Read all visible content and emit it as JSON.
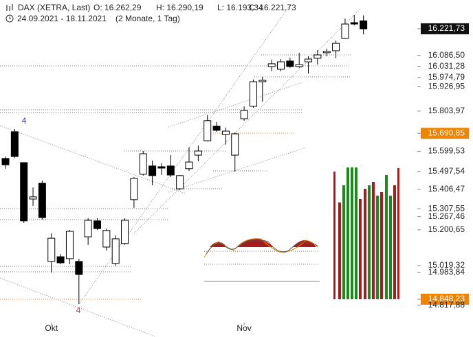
{
  "header": {
    "instrument": "DAX (XETRA, Last)",
    "open": "O: 16.262,29",
    "high": "H: 16.290,19",
    "low": "L: 16.193,34",
    "close": "C: 16.221,73",
    "range": "24.09.2021 - 18.11.2021",
    "period": "(2 Monate, 1 Tag)"
  },
  "chart_data": {
    "type": "candlestick",
    "categories": [
      null,
      null,
      null,
      null,
      null,
      "Okt",
      null,
      null,
      null,
      null,
      null,
      null,
      null,
      null,
      null,
      null,
      null,
      null,
      null,
      null,
      null,
      null,
      null,
      null,
      null,
      null,
      "Nov",
      null,
      null,
      null,
      null,
      null,
      null,
      null,
      null,
      null,
      null,
      null,
      null,
      null
    ],
    "open": [
      15563,
      15699,
      15542,
      15357,
      15437,
      15040,
      15064,
      15054,
      15040,
      15165,
      15246,
      15113,
      15030,
      15131,
      15354,
      15483,
      15525,
      15521,
      15525,
      15409,
      15511,
      15580,
      15653,
      15727,
      15685,
      15580,
      15765,
      15828,
      15953,
      16030,
      16016,
      16058,
      16030,
      16054,
      16072,
      16100,
      16110,
      16173,
      16253,
      16262.29
    ],
    "high": [
      15573,
      15713,
      15542,
      15416,
      15451,
      15183,
      15078,
      15200,
      15054,
      15260,
      15260,
      15207,
      15172,
      15260,
      15469,
      15601,
      15552,
      15538,
      15580,
      15479,
      15619,
      15629,
      15783,
      15748,
      15720,
      15695,
      15828,
      15964,
      15978,
      16065,
      16068,
      16075,
      16100,
      16082,
      16114,
      16121,
      16162,
      16274,
      16291,
      16290.19
    ],
    "low": [
      15511,
      15566,
      15235,
      15322,
      15253,
      14984,
      15026,
      15026,
      14824,
      15124,
      15200,
      15096,
      15019,
      15124,
      15312,
      15476,
      15427,
      15479,
      15469,
      15402,
      15500,
      15549,
      15650,
      15699,
      15633,
      15497,
      15755,
      15821,
      15852,
      16006,
      16006,
      16023,
      16023,
      15995,
      16040,
      16082,
      16072,
      16170,
      16239,
      16193.34
    ],
    "close": [
      15531,
      15573,
      15246,
      15368,
      15263,
      15158,
      15033,
      15193,
      14974,
      15249,
      15207,
      15197,
      15155,
      15249,
      15462,
      15587,
      15476,
      15514,
      15479,
      15476,
      15545,
      15601,
      15755,
      15706,
      15702,
      15688,
      15807,
      15953,
      15960,
      16044,
      16054,
      16030,
      16040,
      16068,
      16089,
      16107,
      16148,
      16246,
      16246,
      16221.73
    ],
    "up_color": "#ffffff",
    "down_color": "#000000",
    "ylim": [
      14712,
      16368
    ],
    "yticks": [
      {
        "value": 16221.73,
        "label": "16.221,73"
      },
      {
        "value": 16086.5,
        "label": "16.086,50"
      },
      {
        "value": 16031.28,
        "label": "16.031,28"
      },
      {
        "value": 15974.79,
        "label": "15.974,79"
      },
      {
        "value": 15926.95,
        "label": "15.926,95"
      },
      {
        "value": 15803.97,
        "label": "15.803,97"
      },
      {
        "value": 15690.85,
        "label": "15.690,85"
      },
      {
        "value": 15599.53,
        "label": "15.599,53"
      },
      {
        "value": 15497.54,
        "label": "15.497,54"
      },
      {
        "value": 15406.47,
        "label": "15.406,47"
      },
      {
        "value": 15307.55,
        "label": "15.307,55"
      },
      {
        "value": 15267.46,
        "label": "15.267,46"
      },
      {
        "value": 15200.65,
        "label": "15.200,65"
      },
      {
        "value": 15019.32,
        "label": "15.019,32"
      },
      {
        "value": 14983.84,
        "label": "14.983,84"
      },
      {
        "value": 14848.23,
        "label": "14.848,23"
      },
      {
        "value": 14817.88,
        "label": "14.817,88"
      }
    ],
    "tick_badge_colors": [
      "#111111",
      null,
      null,
      null,
      null,
      null,
      "#f08300",
      null,
      null,
      null,
      null,
      null,
      null,
      null,
      null,
      "#f08300",
      null
    ],
    "annotations": [
      {
        "text": "4",
        "color": "#3333cc"
      },
      {
        "text": "4",
        "color": "#e0207a"
      }
    ]
  }
}
